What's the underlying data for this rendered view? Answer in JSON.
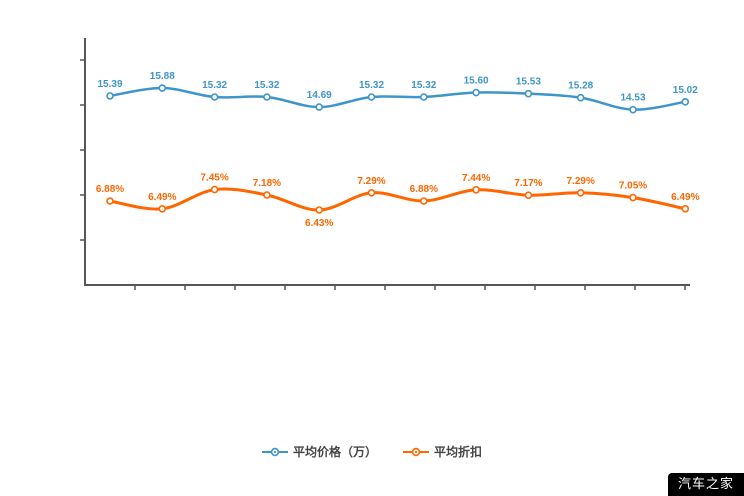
{
  "chart_data": {
    "type": "line",
    "title": "",
    "x_labels": [
      "",
      "",
      "",
      "",
      "",
      "",
      "",
      "",
      "",
      "",
      "",
      ""
    ],
    "series": [
      {
        "name": "平均价格（万）",
        "color": "#3e95cb",
        "values": [
          15.39,
          15.88,
          15.32,
          15.32,
          14.69,
          15.32,
          15.32,
          15.6,
          15.53,
          15.28,
          14.53,
          15.02
        ],
        "labels": [
          "15.39",
          "15.88",
          "15.32",
          "15.32",
          "14.69",
          "15.32",
          "15.32",
          "15.60",
          "15.53",
          "15.28",
          "14.53",
          "15.02"
        ]
      },
      {
        "name": "平均折扣",
        "color": "#ff6600",
        "values": [
          6.88,
          6.49,
          7.45,
          7.18,
          6.43,
          7.29,
          6.88,
          7.44,
          7.17,
          7.29,
          7.05,
          6.49
        ],
        "labels": [
          "6.88%",
          "6.49%",
          "7.45%",
          "7.18%",
          "6.43%",
          "7.29%",
          "6.88%",
          "7.44%",
          "7.17%",
          "7.29%",
          "7.05%",
          "6.49%"
        ]
      }
    ],
    "legend_position": "bottom",
    "grid": false,
    "axes_visible": true
  },
  "legend": {
    "items": [
      {
        "label": "平均价格（万）",
        "color": "#3e95cb"
      },
      {
        "label": "平均折扣",
        "color": "#ff6600"
      }
    ]
  },
  "watermark": {
    "text": "汽车之家",
    "bg": "#000000",
    "text_color": "#ffffff"
  }
}
